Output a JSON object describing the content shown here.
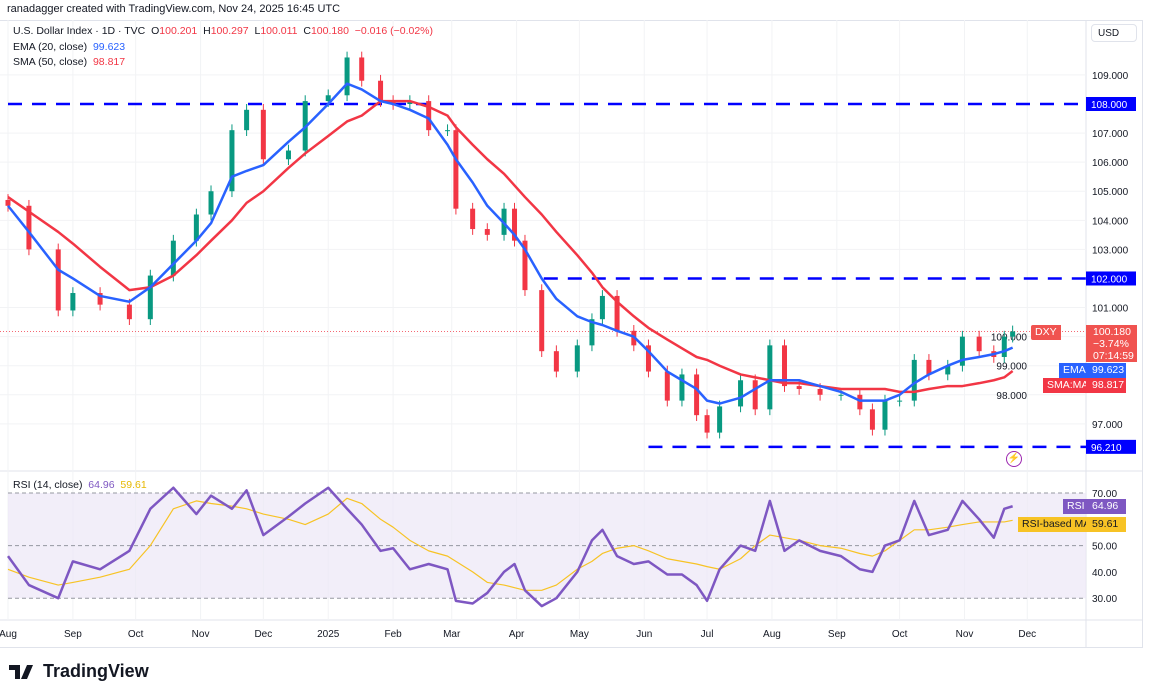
{
  "credit": "ranadagger created with TradingView.com, Nov 24, 2025 16:45 UTC",
  "legend": {
    "symbol": "U.S. Dollar Index · 1D · TVC",
    "o_label": "O",
    "o": "100.201",
    "h_label": "H",
    "h": "100.297",
    "l_label": "L",
    "l": "100.011",
    "c_label": "C",
    "c": "100.180",
    "change": "−0.016 (−0.02%)",
    "ema_label": "EMA (20, close)",
    "ema_value": "99.623",
    "sma_label": "SMA (50, close)",
    "sma_value": "98.817",
    "rsi_label": "RSI (14, close)",
    "rsi_value": "64.96",
    "rsi_ma_value": "59.61"
  },
  "currency": "USD",
  "tags": {
    "dxy_label": "DXY",
    "dxy_price": "100.180",
    "dxy_change": "−3.74%",
    "dxy_countdown": "07:14:59",
    "ema_label": "EMA",
    "ema_price": "99.623",
    "sma_label": "SMA:MA",
    "sma_price": "98.817",
    "rsi_label": "RSI",
    "rsi_price": "64.96",
    "rsi_ma_label": "RSI-based MA",
    "rsi_ma_price": "59.61"
  },
  "levels": [
    {
      "value": 108.0,
      "label": "108.000",
      "from": "2024-08-01"
    },
    {
      "value": 102.0,
      "label": "102.000",
      "from": "2025-04-14"
    },
    {
      "value": 96.21,
      "label": "96.210",
      "from": "2025-06-03"
    }
  ],
  "logo": "TradingView",
  "colors": {
    "up": "#089981",
    "down": "#f23645",
    "ema": "#2962ff",
    "sma": "#f23645",
    "level": "#0000ff",
    "rsi": "#7e57c2",
    "rsi_ma": "#f7c325",
    "rsi_band": "#ede7f6"
  },
  "chart_data": {
    "type": "candlestick",
    "price_axis": {
      "ticks": [
        97,
        98,
        99,
        100,
        101,
        103,
        104,
        105,
        106,
        107,
        109
      ],
      "range": [
        95.9,
        110.3
      ]
    },
    "rsi_axis": {
      "ticks": [
        30,
        40,
        50,
        70
      ],
      "band": [
        30,
        70
      ],
      "midline": 50
    },
    "time_ticks": [
      [
        "Aug",
        "2024-08-01"
      ],
      [
        "Sep",
        "2024-09-01"
      ],
      [
        "Oct",
        "2024-10-01"
      ],
      [
        "Nov",
        "2024-11-01"
      ],
      [
        "Dec",
        "2024-12-01"
      ],
      [
        "2025",
        "2025-01-01"
      ],
      [
        "Feb",
        "2025-02-01"
      ],
      [
        "Mar",
        "2025-03-01"
      ],
      [
        "Apr",
        "2025-04-01"
      ],
      [
        "May",
        "2025-05-01"
      ],
      [
        "Jun",
        "2025-06-01"
      ],
      [
        "Jul",
        "2025-07-01"
      ],
      [
        "Aug",
        "2025-08-01"
      ],
      [
        "Sep",
        "2025-09-01"
      ],
      [
        "Oct",
        "2025-10-01"
      ],
      [
        "Nov",
        "2025-11-01"
      ],
      [
        "Dec",
        "2025-12-01"
      ]
    ],
    "dates": [
      "2024-08-01",
      "2024-08-11",
      "2024-08-25",
      "2024-09-01",
      "2024-09-14",
      "2024-09-28",
      "2024-10-08",
      "2024-10-19",
      "2024-10-30",
      "2024-11-06",
      "2024-11-16",
      "2024-11-23",
      "2024-12-01",
      "2024-12-13",
      "2024-12-21",
      "2025-01-01",
      "2025-01-10",
      "2025-01-17",
      "2025-01-26",
      "2025-02-01",
      "2025-02-09",
      "2025-02-18",
      "2025-02-27",
      "2025-03-03",
      "2025-03-11",
      "2025-03-18",
      "2025-03-26",
      "2025-03-31",
      "2025-04-05",
      "2025-04-13",
      "2025-04-20",
      "2025-04-30",
      "2025-05-07",
      "2025-05-12",
      "2025-05-19",
      "2025-05-27",
      "2025-06-03",
      "2025-06-12",
      "2025-06-19",
      "2025-06-26",
      "2025-07-01",
      "2025-07-07",
      "2025-07-17",
      "2025-07-24",
      "2025-07-31",
      "2025-08-07",
      "2025-08-14",
      "2025-08-24",
      "2025-09-03",
      "2025-09-12",
      "2025-09-18",
      "2025-09-24",
      "2025-10-01",
      "2025-10-08",
      "2025-10-15",
      "2025-10-24",
      "2025-10-31",
      "2025-11-08",
      "2025-11-15",
      "2025-11-20",
      "2025-11-24"
    ],
    "close": [
      104.5,
      103.0,
      100.9,
      101.5,
      101.1,
      100.6,
      102.1,
      103.3,
      104.2,
      105.0,
      107.1,
      107.8,
      106.1,
      106.4,
      108.1,
      108.3,
      109.6,
      108.8,
      108.1,
      108.0,
      108.1,
      107.1,
      107.1,
      104.4,
      103.7,
      103.5,
      104.4,
      103.3,
      101.6,
      99.5,
      98.8,
      99.7,
      100.6,
      101.4,
      100.2,
      99.7,
      98.8,
      97.8,
      98.7,
      97.3,
      96.7,
      97.6,
      98.5,
      97.5,
      99.7,
      98.3,
      98.2,
      98.0,
      98.0,
      97.5,
      96.8,
      97.8,
      97.8,
      99.2,
      98.7,
      99.0,
      100.0,
      99.5,
      99.3,
      100.0,
      100.18
    ],
    "series": [
      {
        "name": "EMA (20, close)",
        "values": [
          104.5,
          103.6,
          102.3,
          102.0,
          101.4,
          101.2,
          101.7,
          102.5,
          103.3,
          103.9,
          105.5,
          105.7,
          105.9,
          106.7,
          107.2,
          108.0,
          108.7,
          108.5,
          108.1,
          108.0,
          107.8,
          107.5,
          106.6,
          106.1,
          105.3,
          104.5,
          103.9,
          103.5,
          103.0,
          102.0,
          101.3,
          100.7,
          100.5,
          100.4,
          100.2,
          100.0,
          99.5,
          98.8,
          98.5,
          98.2,
          97.8,
          97.7,
          97.9,
          98.2,
          98.5,
          98.5,
          98.5,
          98.3,
          98.1,
          97.8,
          97.8,
          97.8,
          98.0,
          98.4,
          98.7,
          99.0,
          99.2,
          99.3,
          99.4,
          99.5,
          99.623
        ]
      },
      {
        "name": "SMA (50, close)",
        "values": [
          104.8,
          104.3,
          103.6,
          103.2,
          102.4,
          101.6,
          101.7,
          102.1,
          102.8,
          103.3,
          104.0,
          104.6,
          105.0,
          105.8,
          106.3,
          106.9,
          107.4,
          107.6,
          108.1,
          108.1,
          108.1,
          107.9,
          107.6,
          107.2,
          106.6,
          106.1,
          105.6,
          105.2,
          104.8,
          104.2,
          103.6,
          102.8,
          102.2,
          101.7,
          101.2,
          100.7,
          100.3,
          99.9,
          99.6,
          99.3,
          99.2,
          99.0,
          98.7,
          98.6,
          98.5,
          98.4,
          98.4,
          98.3,
          98.2,
          98.2,
          98.2,
          98.2,
          98.1,
          98.1,
          98.2,
          98.3,
          98.3,
          98.4,
          98.5,
          98.6,
          98.817
        ]
      },
      {
        "name": "RSI (14, close)",
        "values": [
          46,
          35,
          30,
          44,
          41,
          48,
          64,
          72,
          62,
          69,
          64,
          71,
          54,
          61,
          66,
          72,
          64,
          58,
          48,
          49,
          41,
          43,
          41,
          29,
          28,
          32,
          40,
          43,
          33,
          27,
          30,
          40,
          52,
          56,
          46,
          43,
          44,
          39,
          39,
          35,
          29,
          41,
          50,
          48,
          67,
          48,
          52,
          48,
          46,
          41,
          40,
          50,
          52,
          67,
          54,
          56,
          67,
          60,
          53,
          64,
          64.96
        ]
      },
      {
        "name": "RSI-based MA",
        "values": [
          41,
          38,
          35,
          36,
          38,
          41,
          50,
          64,
          67,
          66,
          65,
          64,
          62,
          60,
          58,
          62,
          68,
          66,
          60,
          57,
          52,
          48,
          46,
          44,
          40,
          36,
          35,
          34,
          33,
          33,
          35,
          41,
          44,
          47,
          49,
          50,
          48,
          45,
          44,
          43,
          42,
          41,
          45,
          50,
          54,
          53,
          52,
          50,
          49,
          47,
          46,
          48,
          52,
          56,
          56,
          57,
          58,
          59,
          59,
          59,
          59.61
        ]
      }
    ]
  }
}
